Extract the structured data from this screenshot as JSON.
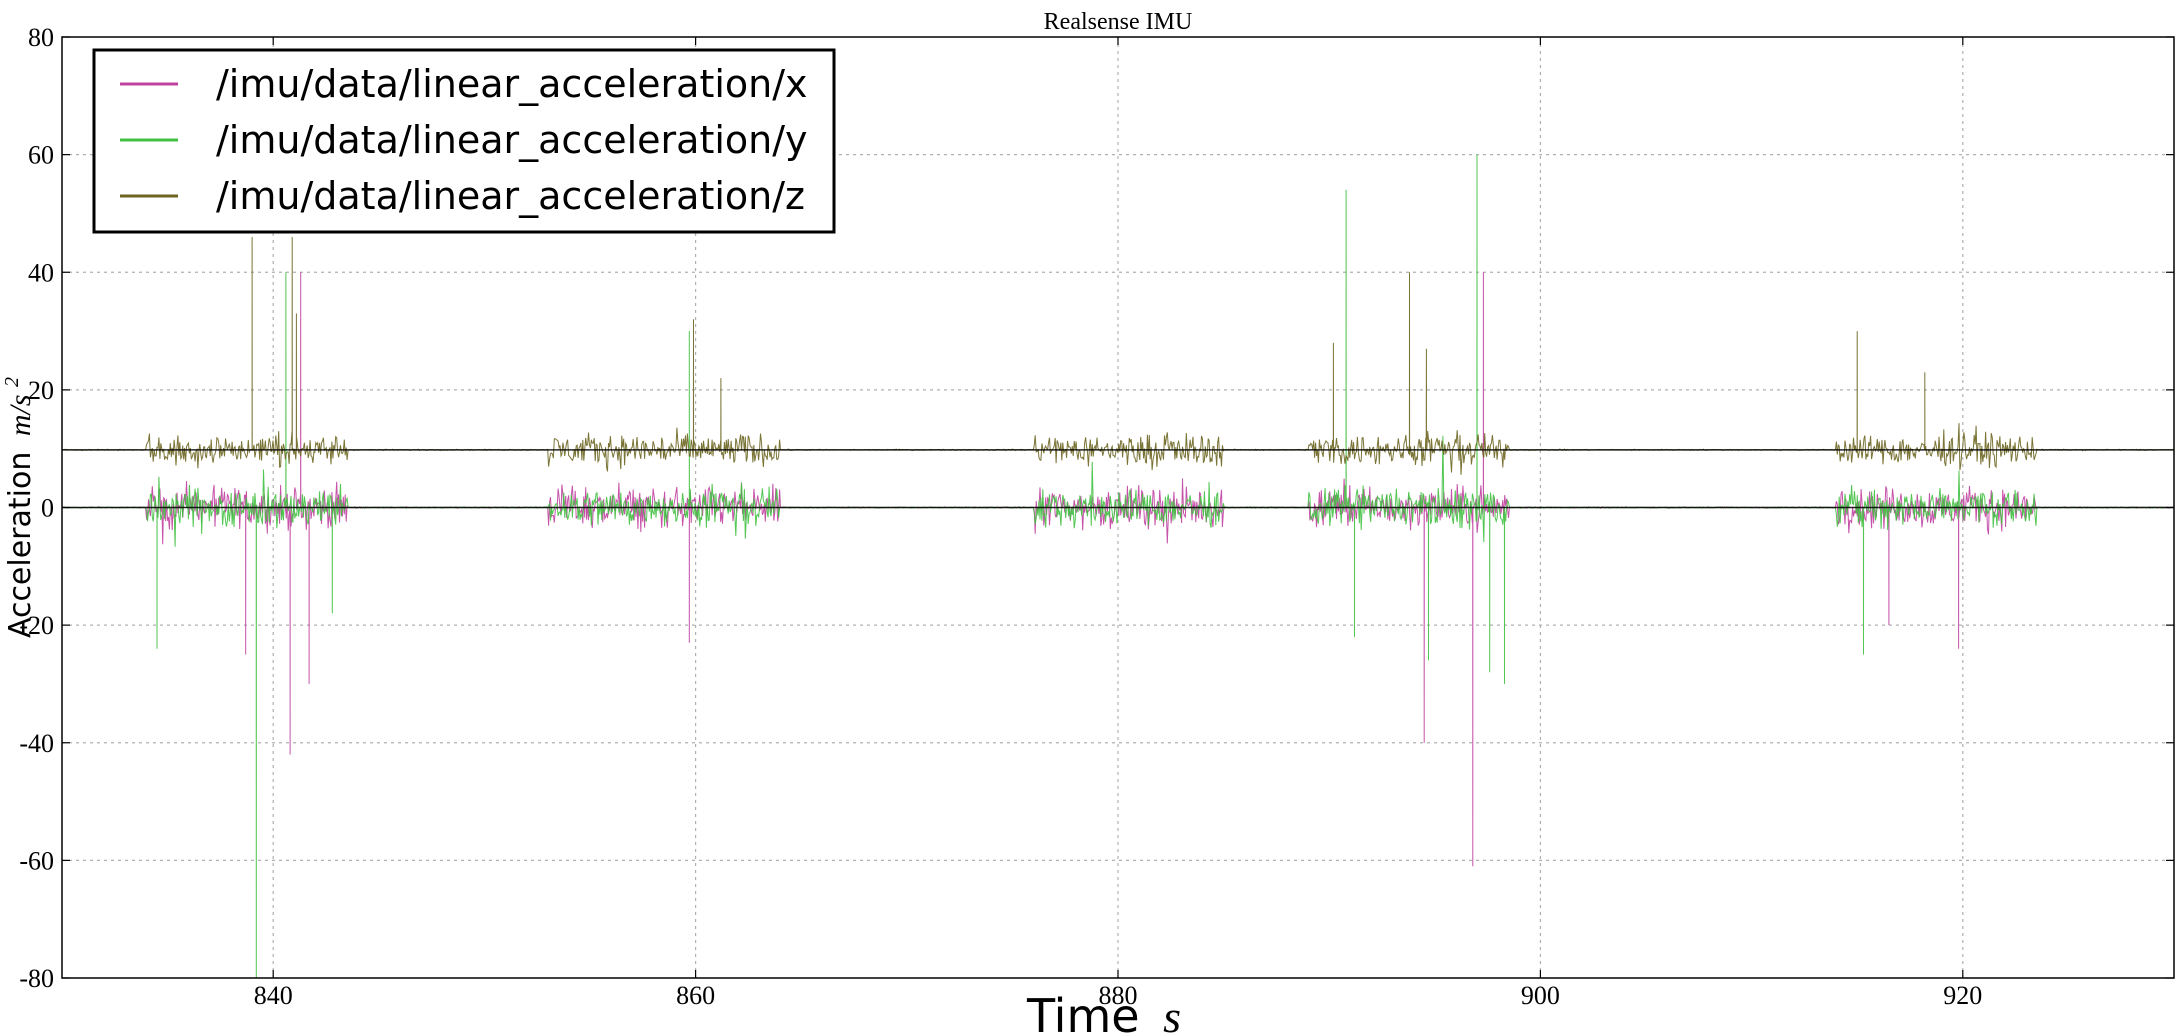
{
  "chart_data": {
    "type": "line",
    "title": "Realsense IMU",
    "xlabel": "Time",
    "xlabel_unit": "s",
    "ylabel": "Acceleration",
    "ylabel_unit": "m/s",
    "ylabel_unit_exp": "2",
    "xlim": [
      830,
      930
    ],
    "ylim": [
      -80,
      80
    ],
    "x_ticks": [
      840,
      860,
      880,
      900,
      920
    ],
    "x_tick_labels": [
      "840",
      "860",
      "880",
      "900",
      "920"
    ],
    "y_ticks": [
      80,
      60,
      40,
      20,
      0,
      -20,
      -40,
      -60,
      -80
    ],
    "y_tick_labels": [
      "80",
      "60",
      "40",
      "20",
      "0",
      "-20",
      "-40",
      "-60",
      "-80"
    ],
    "grid": true,
    "legend_position": "top-left",
    "active_segments": [
      [
        834,
        843.5
      ],
      [
        853,
        864
      ],
      [
        876,
        885
      ],
      [
        889,
        898.5
      ],
      [
        914,
        923.5
      ]
    ],
    "series": [
      {
        "name": "/imu/data/linear_acceleration/x",
        "color": "#c040a0",
        "baseline": 0,
        "noise_amplitude": 5,
        "spikes": [
          [
            838.7,
            -25
          ],
          [
            840.8,
            -42
          ],
          [
            841.3,
            40
          ],
          [
            841.7,
            -30
          ],
          [
            859.7,
            -23
          ],
          [
            894.5,
            -40
          ],
          [
            896.8,
            -61
          ],
          [
            897.3,
            40
          ],
          [
            916.5,
            -20
          ],
          [
            919.8,
            -24
          ]
        ]
      },
      {
        "name": "/imu/data/linear_acceleration/y",
        "color": "#40c040",
        "baseline": 0,
        "noise_amplitude": 5,
        "spikes": [
          [
            834.5,
            -24
          ],
          [
            839.2,
            -80
          ],
          [
            840.6,
            40
          ],
          [
            842.8,
            -18
          ],
          [
            859.7,
            30
          ],
          [
            890.8,
            54
          ],
          [
            891.2,
            -22
          ],
          [
            894.7,
            -26
          ],
          [
            897.0,
            60
          ],
          [
            897.6,
            -28
          ],
          [
            898.3,
            -30
          ],
          [
            915.3,
            -25
          ]
        ]
      },
      {
        "name": "/imu/data/linear_acceleration/z",
        "color": "#6b6520",
        "baseline": 9.8,
        "noise_amplitude": 4,
        "spikes": [
          [
            839.0,
            46
          ],
          [
            840.9,
            46
          ],
          [
            841.1,
            33
          ],
          [
            859.9,
            32
          ],
          [
            861.2,
            22
          ],
          [
            890.2,
            28
          ],
          [
            893.8,
            40
          ],
          [
            894.6,
            27
          ],
          [
            915.0,
            30
          ],
          [
            918.2,
            23
          ]
        ]
      }
    ]
  }
}
